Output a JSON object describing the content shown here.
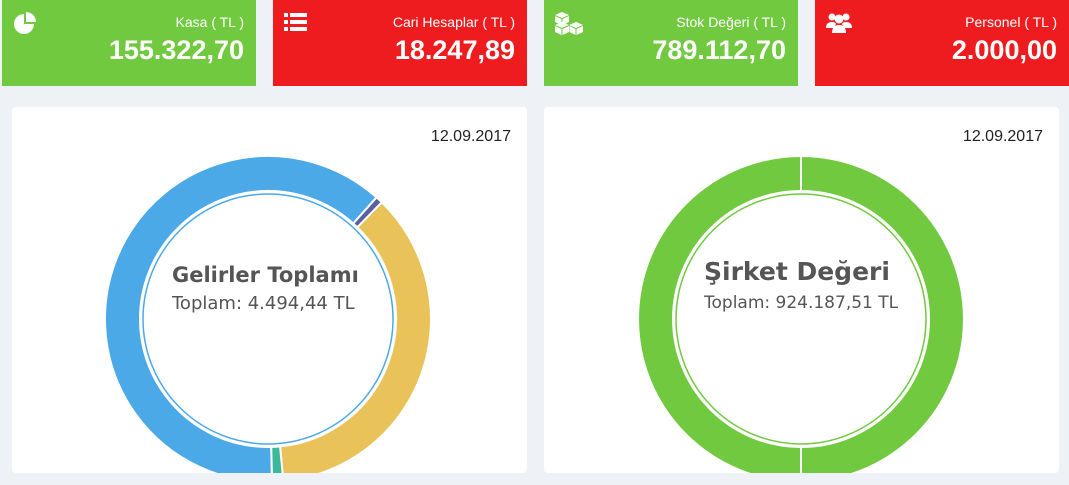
{
  "cards": [
    {
      "label": "Kasa ( TL )",
      "value": "155.322,70",
      "color": "#71c940",
      "icon": "pie-chart-icon"
    },
    {
      "label": "Cari Hesaplar ( TL )",
      "value": "18.247,89",
      "color": "#ee1c1e",
      "icon": "list-icon"
    },
    {
      "label": "Stok Değeri ( TL )",
      "value": "789.112,70",
      "color": "#71c940",
      "icon": "cubes-icon"
    },
    {
      "label": "Personel ( TL )",
      "value": "2.000,00",
      "color": "#ee1c1e",
      "icon": "users-icon"
    }
  ],
  "income_panel": {
    "date": "12.09.2017",
    "title": "Gelirler Toplamı",
    "total_text": "Toplam: 4.494,44 TL"
  },
  "company_panel": {
    "date": "12.09.2017",
    "title": "Şirket Değeri",
    "total_text": "Toplam: 924.187,51 TL"
  },
  "chart_data": [
    {
      "type": "pie",
      "title": "Gelirler Toplamı",
      "slices": [
        {
          "value": 62.0,
          "color": "#4ba9e8"
        },
        {
          "value": 0.7,
          "color": "#5a5f9e"
        },
        {
          "value": 36.2,
          "color": "#e9c35a"
        },
        {
          "value": 1.1,
          "color": "#3bb99a"
        }
      ]
    },
    {
      "type": "pie",
      "title": "Şirket Değeri",
      "slices": [
        {
          "value": 100,
          "color": "#71c940"
        }
      ]
    }
  ]
}
